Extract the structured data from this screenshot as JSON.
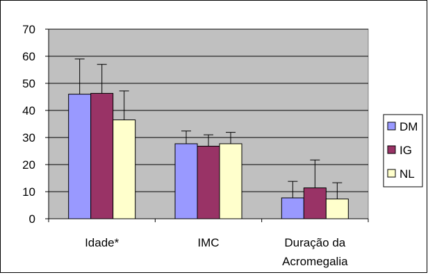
{
  "chart_data": {
    "type": "bar",
    "categories": [
      [
        "Idade*"
      ],
      [
        "IMC"
      ],
      [
        "Duração da",
        "Acromegalia"
      ]
    ],
    "series": [
      {
        "name": "DM",
        "color": "#9999ff",
        "values": [
          46,
          27.7,
          7.7
        ],
        "errors": [
          13,
          4.7,
          6.1
        ]
      },
      {
        "name": "IG",
        "color": "#993366",
        "values": [
          46.3,
          26.8,
          11.4
        ],
        "errors": [
          10.7,
          4.2,
          10.3
        ]
      },
      {
        "name": "NL",
        "color": "#ffffcc",
        "values": [
          36.5,
          27.7,
          7.3
        ],
        "errors": [
          10.7,
          4.2,
          6.0
        ]
      }
    ],
    "yticks": [
      "0",
      "10",
      "20",
      "30",
      "40",
      "50",
      "60",
      "70"
    ],
    "ylim": [
      0,
      70
    ],
    "grid": true,
    "plot_background": "#c0c0c0",
    "legend_position": "right"
  }
}
